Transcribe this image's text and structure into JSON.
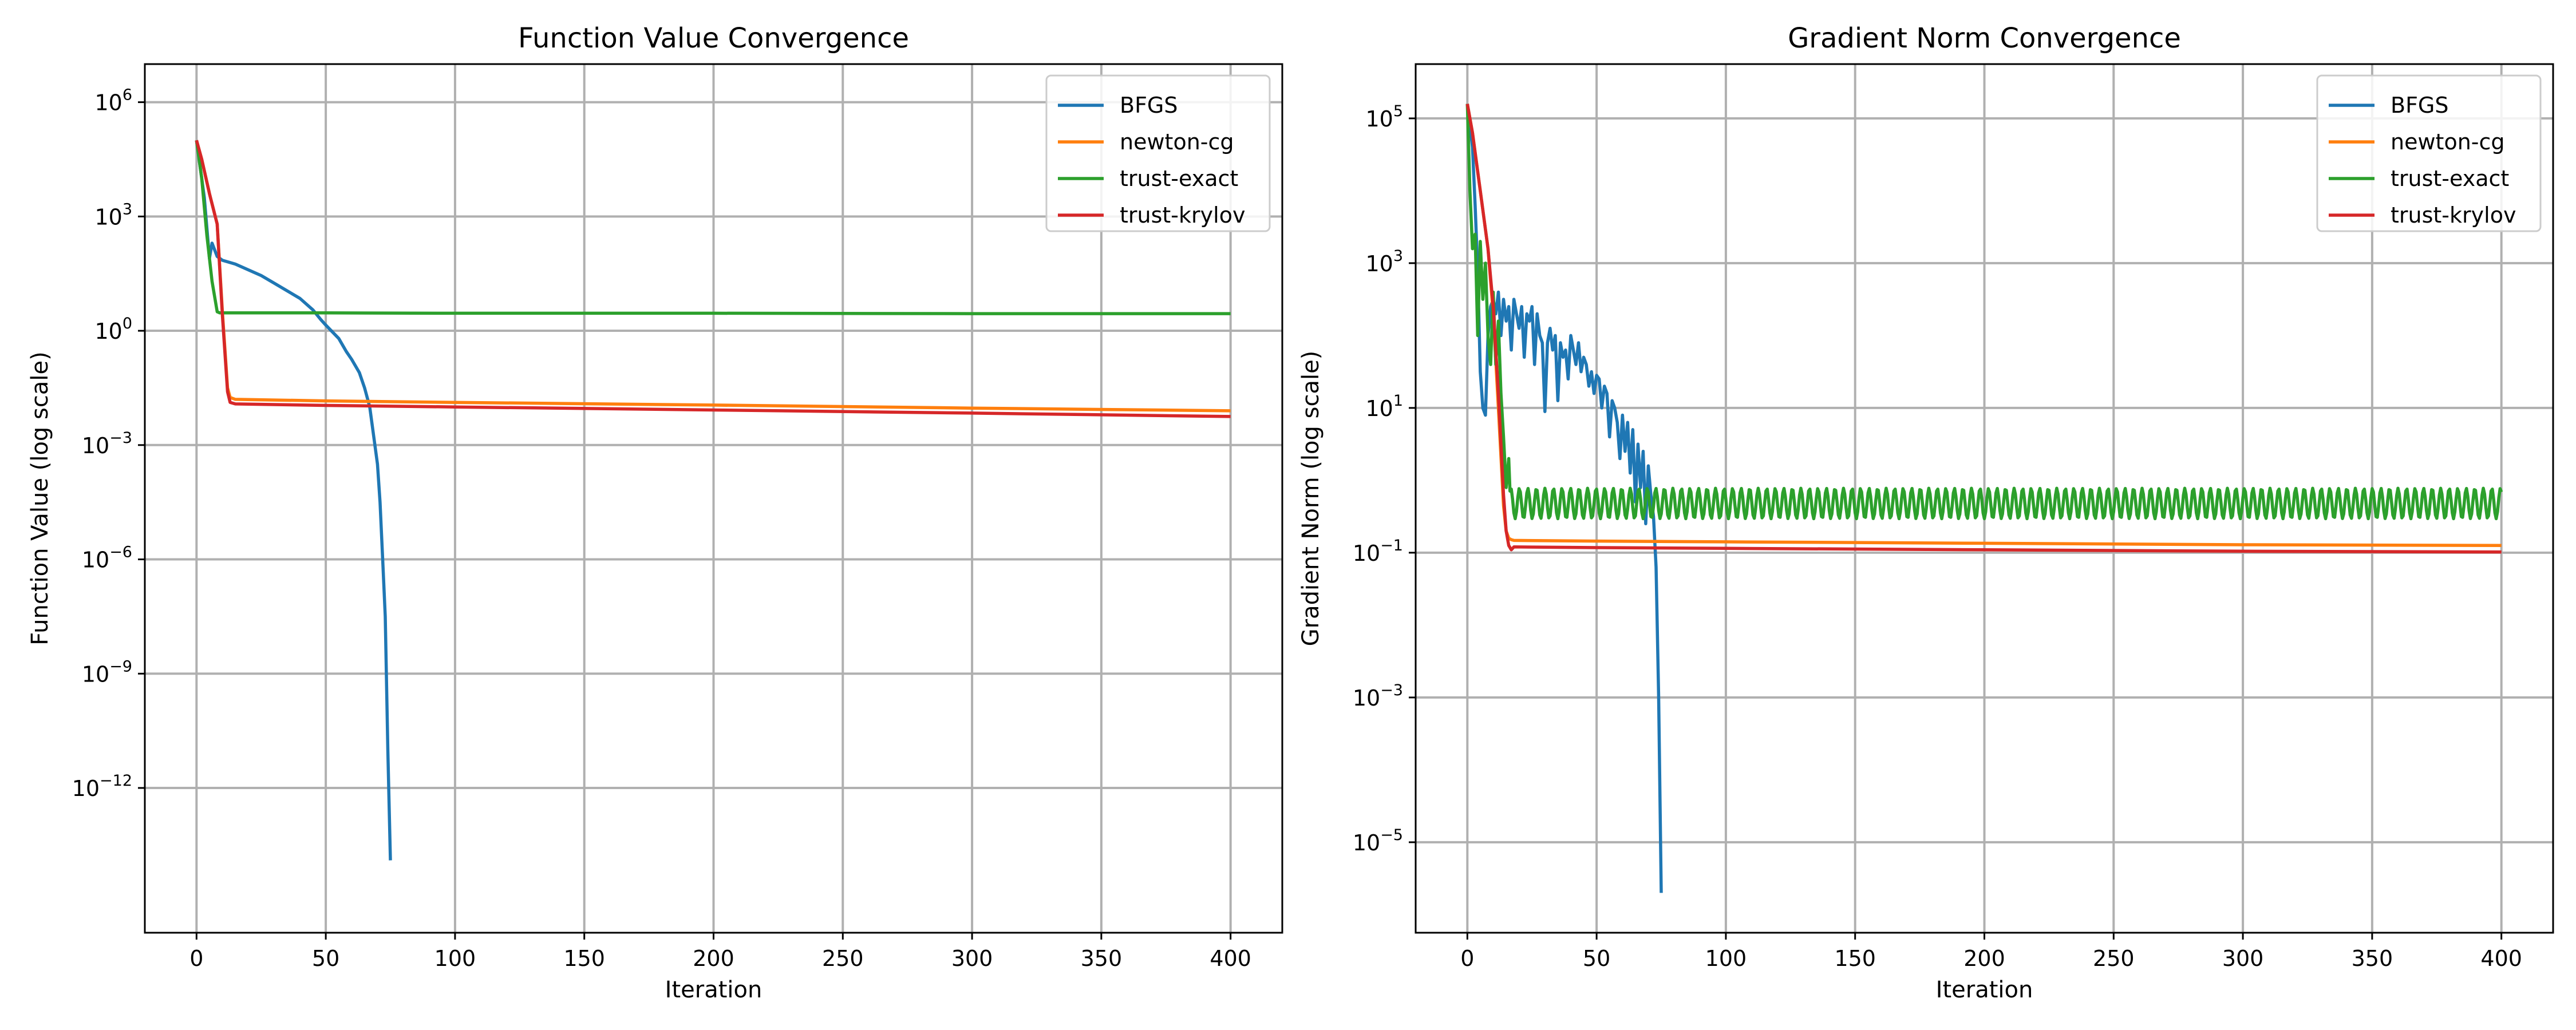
{
  "chart_data": [
    {
      "type": "line",
      "title": "Function Value Convergence",
      "xlabel": "Iteration",
      "ylabel": "Function Value (log scale)",
      "yscale": "log",
      "xlim": [
        -20,
        420
      ],
      "ylim_log10": [
        -15.8,
        7
      ],
      "xticks": [
        "0",
        "50",
        "100",
        "150",
        "200",
        "250",
        "300",
        "350",
        "400"
      ],
      "yticks": [
        {
          "base": "10",
          "exp": "6"
        },
        {
          "base": "10",
          "exp": "3"
        },
        {
          "base": "10",
          "exp": "0"
        },
        {
          "base": "10",
          "exp": "−3"
        },
        {
          "base": "10",
          "exp": "−6"
        },
        {
          "base": "10",
          "exp": "−9"
        },
        {
          "base": "10",
          "exp": "−12"
        }
      ],
      "grid": true,
      "legend": "top-right",
      "series": [
        {
          "name": "BFGS",
          "color": "#1f77b4",
          "x": [
            0,
            3,
            4,
            5,
            6,
            8,
            10,
            15,
            20,
            25,
            30,
            35,
            40,
            45,
            48,
            50,
            55,
            58,
            60,
            63,
            65,
            67,
            68,
            70,
            71,
            72,
            73,
            74,
            75
          ],
          "log10_y": [
            5.0,
            3.5,
            2.7,
            1.9,
            2.3,
            1.95,
            1.85,
            1.75,
            1.6,
            1.45,
            1.25,
            1.05,
            0.85,
            0.55,
            0.3,
            0.15,
            -0.2,
            -0.55,
            -0.75,
            -1.1,
            -1.5,
            -2.0,
            -2.5,
            -3.5,
            -4.5,
            -6.0,
            -7.5,
            -11.0,
            -13.9
          ]
        },
        {
          "name": "newton-cg",
          "color": "#ff7f0e",
          "x": [
            0,
            2,
            5,
            8,
            10,
            12,
            13,
            15,
            50,
            100,
            200,
            300,
            400
          ],
          "log10_y": [
            5.0,
            4.5,
            3.6,
            2.8,
            0.5,
            -1.5,
            -1.75,
            -1.8,
            -1.84,
            -1.88,
            -1.95,
            -2.03,
            -2.1
          ]
        },
        {
          "name": "trust-exact",
          "color": "#2ca02c",
          "x": [
            0,
            2,
            4,
            6,
            8,
            9,
            50,
            100,
            200,
            300,
            400
          ],
          "log10_y": [
            5.0,
            4.0,
            2.5,
            1.3,
            0.5,
            0.47,
            0.47,
            0.46,
            0.46,
            0.45,
            0.45
          ]
        },
        {
          "name": "trust-krylov",
          "color": "#d62728",
          "x": [
            0,
            2,
            5,
            8,
            10,
            12,
            13,
            15,
            50,
            100,
            200,
            300,
            400
          ],
          "log10_y": [
            5.0,
            4.5,
            3.6,
            2.8,
            0.4,
            -1.6,
            -1.88,
            -1.92,
            -1.96,
            -2.0,
            -2.08,
            -2.16,
            -2.25
          ]
        }
      ]
    },
    {
      "type": "line",
      "title": "Gradient Norm Convergence",
      "xlabel": "Iteration",
      "ylabel": "Gradient Norm (log scale)",
      "yscale": "log",
      "xlim": [
        -20,
        420
      ],
      "ylim_log10": [
        -6.25,
        5.75
      ],
      "xticks": [
        "0",
        "50",
        "100",
        "150",
        "200",
        "250",
        "300",
        "350",
        "400"
      ],
      "yticks": [
        {
          "base": "10",
          "exp": "5"
        },
        {
          "base": "10",
          "exp": "3"
        },
        {
          "base": "10",
          "exp": "1"
        },
        {
          "base": "10",
          "exp": "−1"
        },
        {
          "base": "10",
          "exp": "−3"
        },
        {
          "base": "10",
          "exp": "−5"
        }
      ],
      "grid": true,
      "legend": "top-right",
      "series": [
        {
          "name": "BFGS",
          "color": "#1f77b4",
          "x": [
            0,
            2,
            3,
            4,
            5,
            6,
            7,
            8,
            9,
            10,
            11,
            12,
            13,
            14,
            15,
            16,
            17,
            18,
            19,
            20,
            21,
            22,
            23,
            24,
            25,
            26,
            27,
            28,
            29,
            30,
            31,
            32,
            33,
            34,
            35,
            36,
            37,
            38,
            39,
            40,
            41,
            42,
            43,
            44,
            45,
            46,
            47,
            48,
            49,
            50,
            51,
            52,
            53,
            54,
            55,
            56,
            57,
            58,
            59,
            60,
            61,
            62,
            63,
            64,
            65,
            66,
            67,
            68,
            69,
            70,
            71,
            72,
            73,
            74,
            75
          ],
          "log10_y": [
            5.2,
            4.6,
            3.8,
            2.9,
            1.5,
            1.0,
            0.9,
            2.0,
            2.4,
            2.5,
            2.3,
            2.6,
            2.0,
            2.5,
            2.2,
            2.4,
            1.8,
            2.5,
            2.3,
            2.1,
            2.4,
            1.7,
            2.3,
            2.2,
            2.4,
            1.6,
            2.3,
            2.0,
            1.9,
            0.95,
            1.9,
            2.1,
            1.8,
            2.0,
            1.1,
            1.9,
            1.7,
            1.8,
            1.4,
            2.0,
            1.8,
            1.6,
            1.9,
            1.5,
            1.7,
            1.6,
            1.3,
            1.5,
            1.2,
            1.45,
            1.4,
            1.0,
            1.3,
            1.2,
            0.6,
            1.1,
            1.0,
            0.8,
            0.3,
            0.9,
            0.4,
            0.8,
            0.1,
            0.7,
            -0.3,
            0.5,
            -0.1,
            0.4,
            -0.6,
            0.2,
            -0.2,
            -0.5,
            -1.2,
            -3.0,
            -5.7
          ]
        },
        {
          "name": "newton-cg",
          "color": "#ff7f0e",
          "x": [
            0,
            2,
            5,
            8,
            10,
            12,
            14,
            15,
            16,
            17,
            18,
            50,
            100,
            200,
            300,
            400
          ],
          "log10_y": [
            5.2,
            4.8,
            4.0,
            3.2,
            2.3,
            1.0,
            -0.35,
            -0.7,
            -0.8,
            -0.82,
            -0.83,
            -0.84,
            -0.85,
            -0.87,
            -0.89,
            -0.9
          ]
        },
        {
          "name": "trust-exact",
          "color": "#2ca02c",
          "x": [
            0,
            1,
            2,
            3,
            4,
            5,
            6,
            7,
            8,
            9,
            10,
            11,
            12,
            13,
            14,
            15,
            16
          ],
          "log10_y": [
            5.2,
            4.0,
            3.2,
            3.4,
            2.0,
            3.3,
            2.5,
            3.0,
            2.0,
            1.6,
            2.6,
            1.6,
            2.2,
            1.2,
            0.6,
            -0.1,
            0.3
          ],
          "osc_from": 16,
          "osc_to": 400,
          "osc_period": 3.3,
          "osc_center_log10": -0.32,
          "osc_amp_log10": 0.21
        },
        {
          "name": "trust-krylov",
          "color": "#d62728",
          "x": [
            0,
            2,
            5,
            8,
            10,
            12,
            14,
            15,
            16,
            17,
            18,
            50,
            100,
            200,
            300,
            400
          ],
          "log10_y": [
            5.2,
            4.8,
            4.0,
            3.2,
            2.4,
            1.2,
            -0.2,
            -0.7,
            -0.9,
            -0.96,
            -0.92,
            -0.93,
            -0.94,
            -0.96,
            -0.98,
            -0.99
          ]
        }
      ]
    }
  ]
}
